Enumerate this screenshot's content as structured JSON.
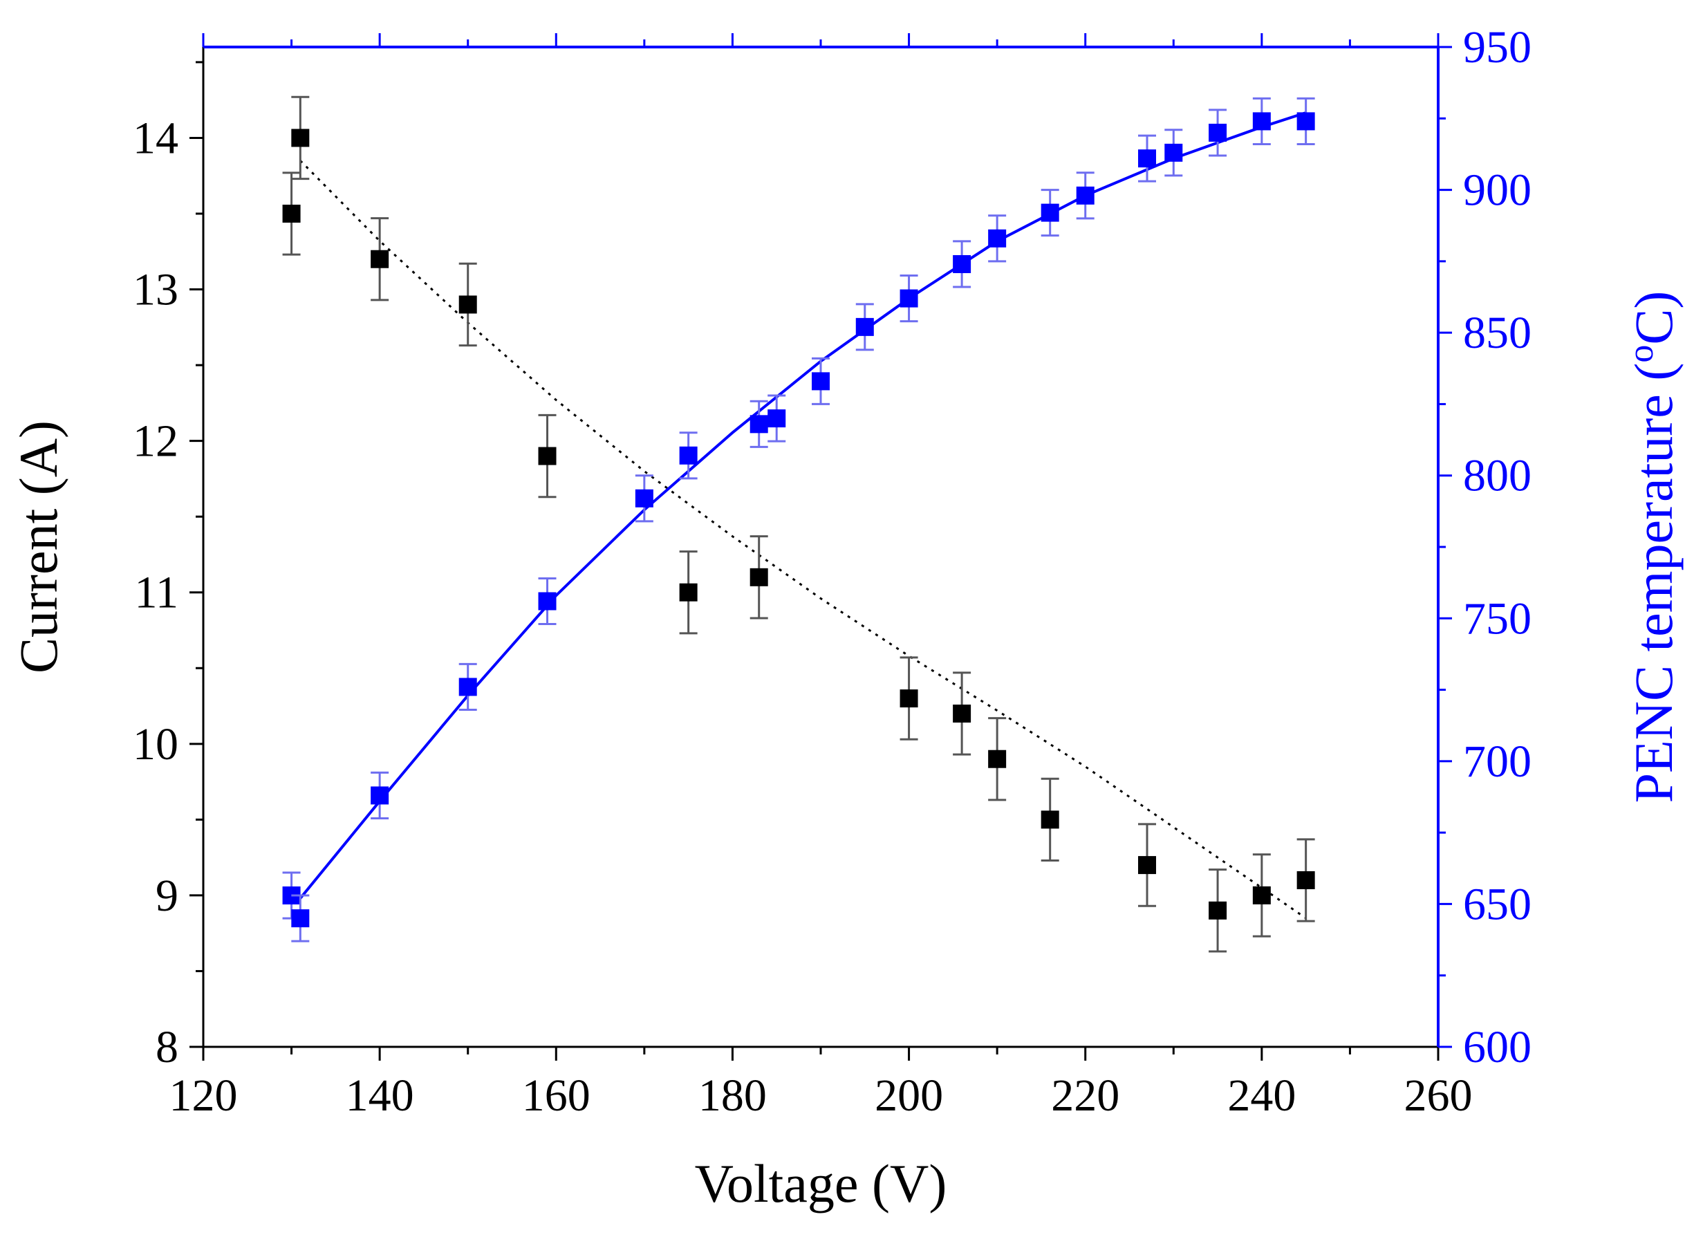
{
  "chart_data": {
    "type": "scatter",
    "title": "",
    "xlabel": "Voltage (V)",
    "ylabel_left": "Current (A)",
    "ylabel_right_main": "PENC temperature (",
    "ylabel_right_sup": "o",
    "ylabel_right_end": "C)",
    "xlim": [
      120,
      260
    ],
    "ylim_left": [
      8,
      14.6
    ],
    "ylim_right": [
      600,
      950
    ],
    "xticks": [
      120,
      140,
      160,
      180,
      200,
      220,
      240,
      260
    ],
    "yticks_left": [
      8,
      9,
      10,
      11,
      12,
      13,
      14
    ],
    "yticks_right": [
      600,
      650,
      700,
      750,
      800,
      850,
      900,
      950
    ],
    "colors": {
      "current": "#000000",
      "temperature": "#0000ff",
      "current_err": "#555555",
      "temperature_err": "#6e6ef0"
    },
    "series": [
      {
        "name": "Current",
        "axis": "left",
        "marker": "square",
        "fit": "dotted",
        "x": [
          130,
          131,
          140,
          150,
          159,
          175,
          183,
          200,
          206,
          210,
          216,
          227,
          235,
          240,
          245
        ],
        "y": [
          13.5,
          14.0,
          13.2,
          12.9,
          11.9,
          11.0,
          11.1,
          10.3,
          10.2,
          9.9,
          9.5,
          9.2,
          8.9,
          9.0,
          9.1
        ],
        "err": [
          0.27,
          0.27,
          0.27,
          0.27,
          0.27,
          0.27,
          0.27,
          0.27,
          0.27,
          0.27,
          0.27,
          0.27,
          0.27,
          0.27,
          0.27
        ],
        "fit_x": [
          131,
          140,
          150,
          160,
          170,
          180,
          190,
          200,
          210,
          220,
          230,
          240,
          245
        ],
        "fit_y": [
          13.85,
          13.32,
          12.78,
          12.27,
          11.8,
          11.37,
          10.96,
          10.58,
          10.22,
          9.85,
          9.45,
          9.05,
          8.85
        ]
      },
      {
        "name": "PENC temperature",
        "axis": "right",
        "marker": "square",
        "fit": "solid",
        "x": [
          130,
          131,
          140,
          150,
          159,
          170,
          175,
          183,
          185,
          190,
          195,
          200,
          206,
          210,
          216,
          220,
          227,
          230,
          235,
          240,
          245
        ],
        "y": [
          653,
          645,
          688,
          726,
          756,
          792,
          807,
          818,
          820,
          833,
          852,
          862,
          874,
          883,
          892,
          898,
          911,
          913,
          920,
          924,
          924
        ],
        "err": [
          8,
          8,
          8,
          8,
          8,
          8,
          8,
          8,
          8,
          8,
          8,
          8,
          8,
          8,
          8,
          8,
          8,
          8,
          8,
          8,
          8
        ],
        "fit_x": [
          131,
          140,
          150,
          160,
          170,
          180,
          190,
          200,
          210,
          220,
          230,
          240,
          245
        ],
        "fit_y": [
          652,
          686,
          723,
          758,
          788,
          815,
          840,
          862,
          882,
          898,
          911,
          922,
          927
        ]
      }
    ]
  }
}
